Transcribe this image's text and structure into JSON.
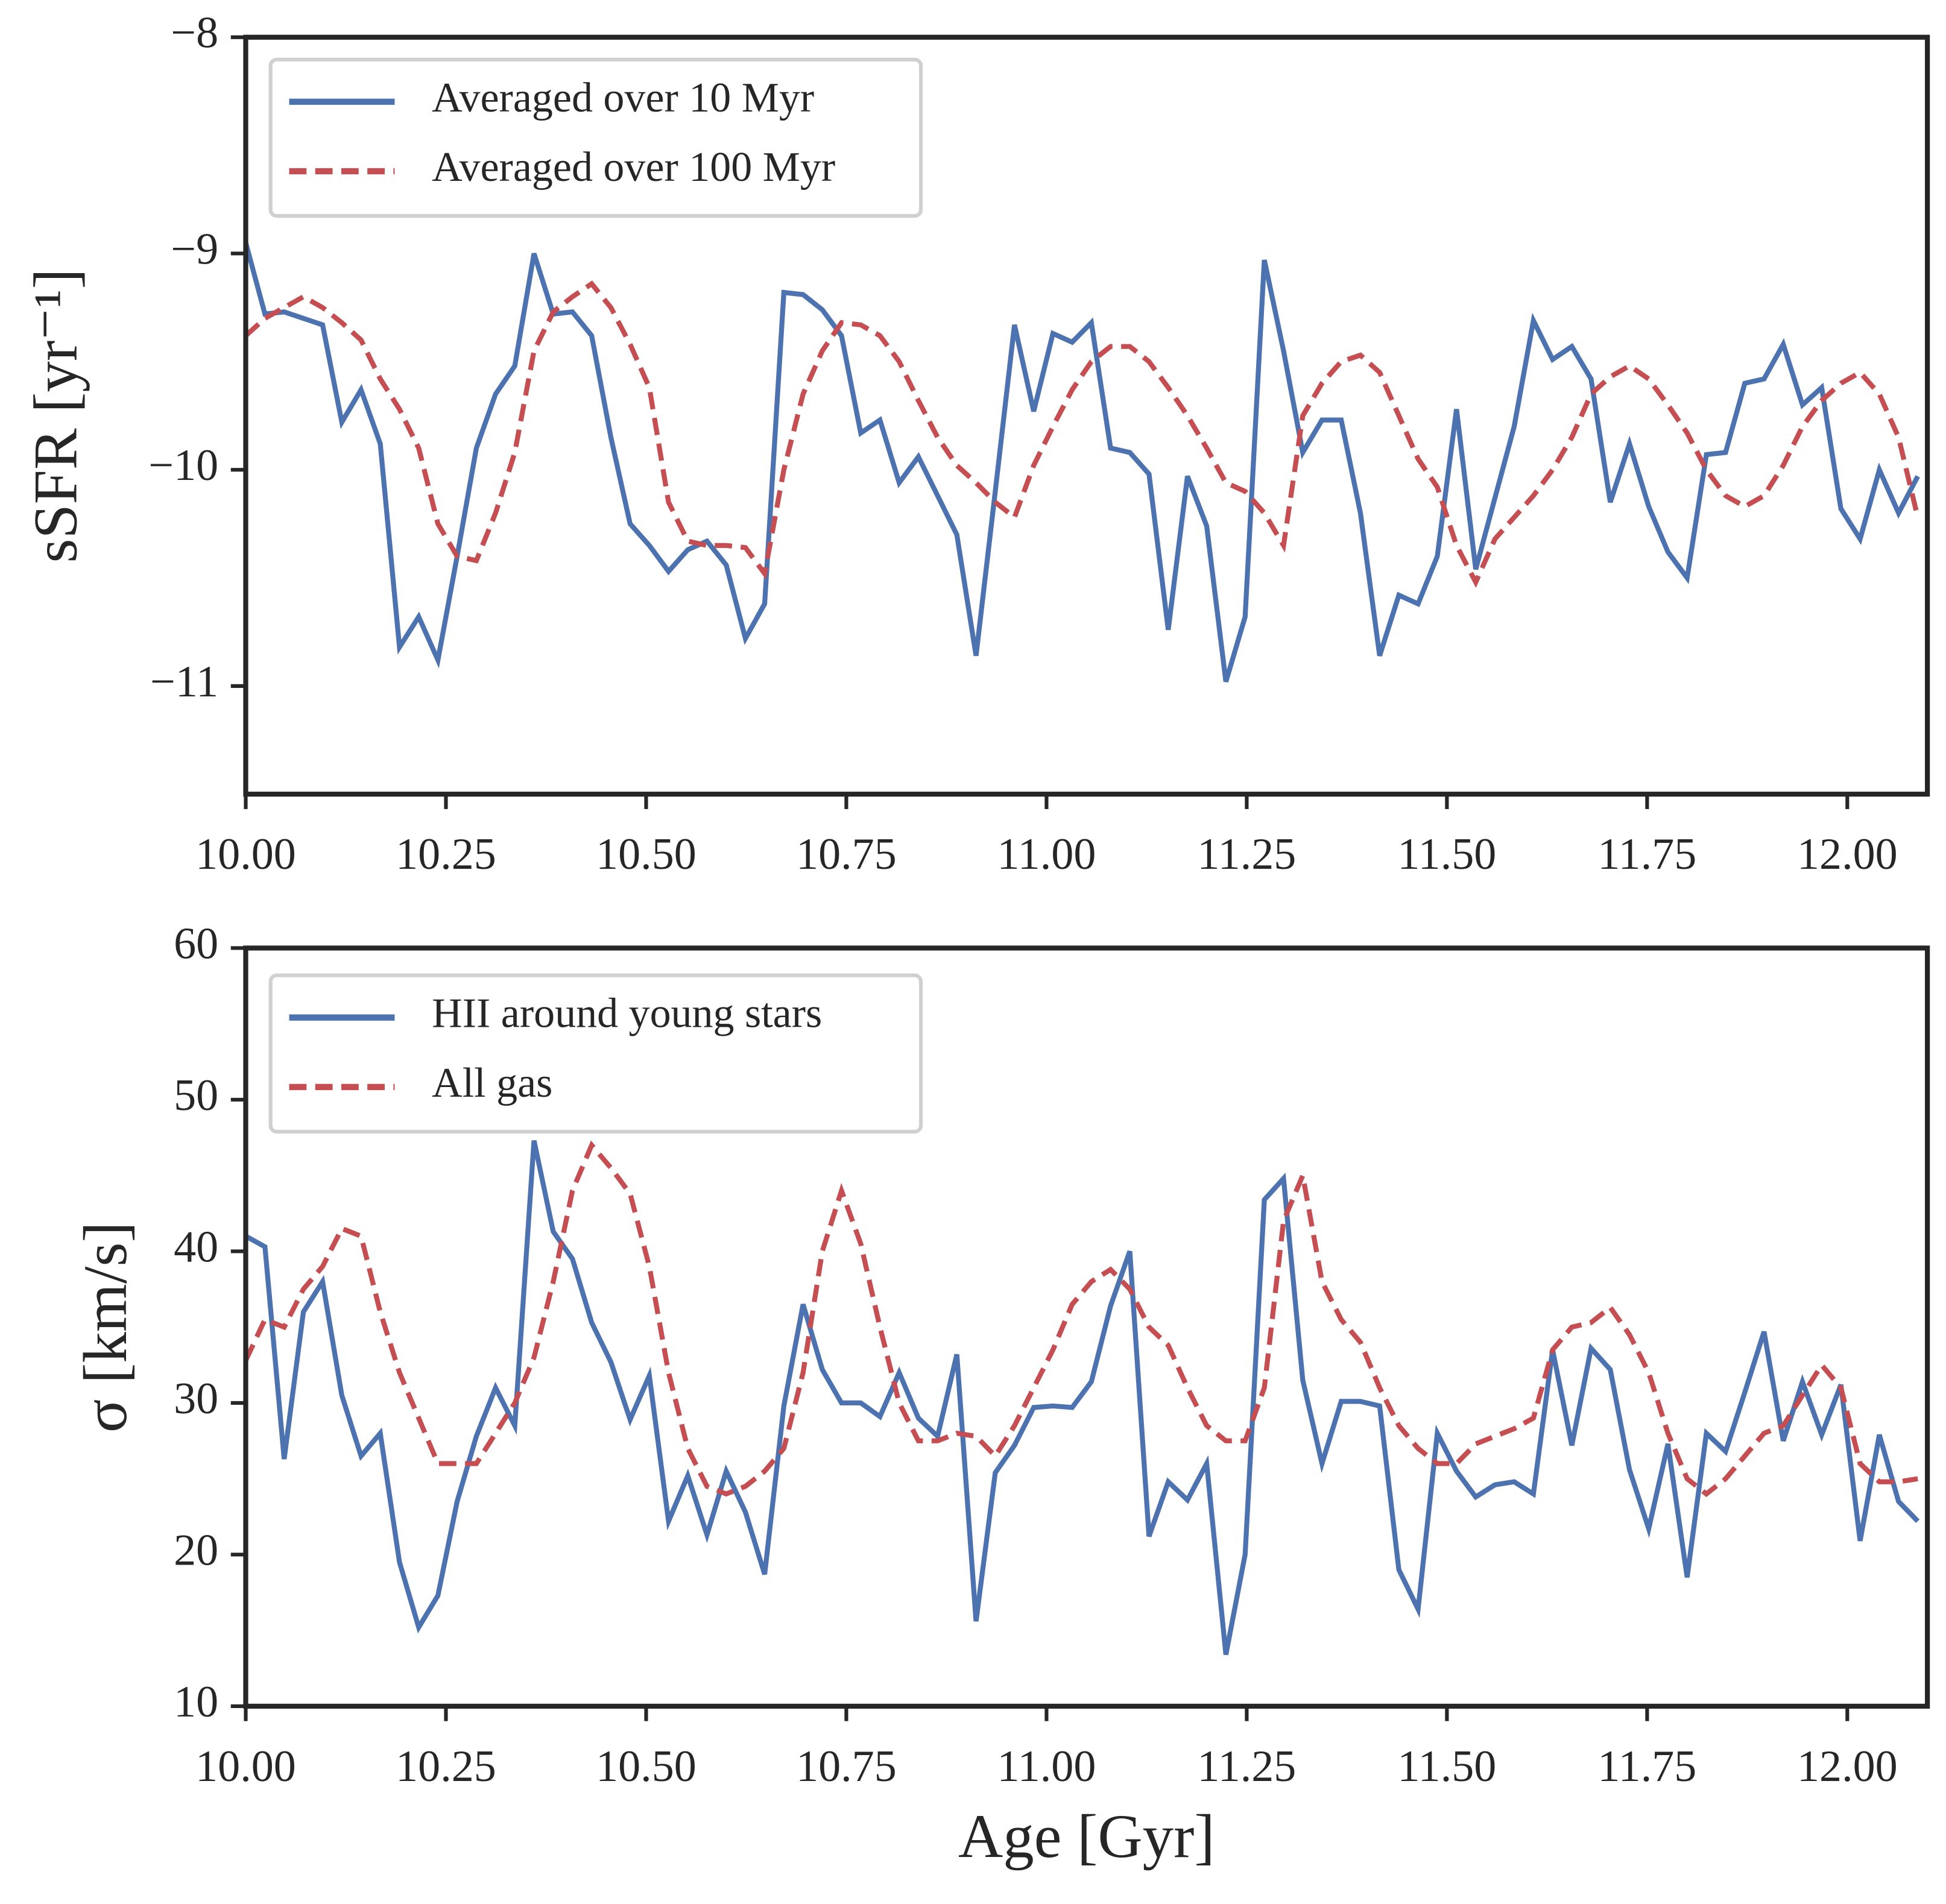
{
  "chart_data": [
    {
      "type": "line",
      "ylabel": "sSFR [yr⁻¹]",
      "legend": "upper left",
      "x": [
        10.0,
        10.024,
        10.048,
        10.072,
        10.096,
        10.12,
        10.144,
        10.168,
        10.192,
        10.216,
        10.24,
        10.264,
        10.288,
        10.312,
        10.336,
        10.36,
        10.384,
        10.408,
        10.432,
        10.456,
        10.48,
        10.504,
        10.528,
        10.552,
        10.576,
        10.6,
        10.624,
        10.648,
        10.672,
        10.696,
        10.72,
        10.744,
        10.768,
        10.792,
        10.816,
        10.84,
        10.864,
        10.888,
        10.912,
        10.936,
        10.96,
        10.984,
        11.008,
        11.032,
        11.056,
        11.08,
        11.104,
        11.128,
        11.152,
        11.176,
        11.2,
        11.224,
        11.248,
        11.272,
        11.296,
        11.32,
        11.344,
        11.368,
        11.392,
        11.416,
        11.44,
        11.464,
        11.488,
        11.512,
        11.536,
        11.56,
        11.584,
        11.608,
        11.632,
        11.656,
        11.68,
        11.704,
        11.728,
        11.752,
        11.776,
        11.8,
        11.824,
        11.848,
        11.872,
        11.896,
        11.92,
        11.944,
        11.968,
        11.992,
        12.016,
        12.04,
        12.064,
        12.088
      ],
      "xlim": [
        10,
        12.1
      ],
      "xticks": [
        {
          "value": 10,
          "label": "10.00"
        },
        {
          "value": 10.25,
          "label": "10.25"
        },
        {
          "value": 10.5,
          "label": "10.50"
        },
        {
          "value": 10.75,
          "label": "10.75"
        },
        {
          "value": 11,
          "label": "11.00"
        },
        {
          "value": 11.25,
          "label": "11.25"
        },
        {
          "value": 11.5,
          "label": "11.50"
        },
        {
          "value": 11.75,
          "label": "11.75"
        },
        {
          "value": 12,
          "label": "12.00"
        }
      ],
      "ylim": [
        -11.5,
        -8
      ],
      "yticks": [
        {
          "value": -11,
          "label": "−11"
        },
        {
          "value": -10,
          "label": "−10"
        },
        {
          "value": -9,
          "label": "−9"
        },
        {
          "value": -8,
          "label": "−8"
        }
      ],
      "series": [
        {
          "name": "Averaged over 10 Myr",
          "color": "#4c72b0",
          "style": "solid",
          "values": [
            -8.95,
            -9.28,
            -9.27,
            -9.3,
            -9.33,
            -9.78,
            -9.63,
            -9.88,
            -10.82,
            -10.68,
            -10.88,
            -10.4,
            -9.9,
            -9.65,
            -9.52,
            -9.0,
            -9.28,
            -9.27,
            -9.38,
            -9.85,
            -10.25,
            -10.35,
            -10.47,
            -10.37,
            -10.33,
            -10.44,
            -10.78,
            -10.62,
            -9.18,
            -9.19,
            -9.26,
            -9.38,
            -9.83,
            -9.77,
            -10.06,
            -9.94,
            -10.12,
            -10.3,
            -10.86,
            -10.1,
            -9.33,
            -9.73,
            -9.37,
            -9.41,
            -9.32,
            -9.9,
            -9.92,
            -10.02,
            -10.74,
            -10.03,
            -10.26,
            -10.98,
            -10.68,
            -9.03,
            -9.45,
            -9.92,
            -9.77,
            -9.77,
            -10.2,
            -10.86,
            -10.58,
            -10.62,
            -10.4,
            -9.72,
            -10.46,
            -10.13,
            -9.8,
            -9.31,
            -9.49,
            -9.43,
            -9.58,
            -10.15,
            -9.88,
            -10.17,
            -10.38,
            -10.5,
            -9.93,
            -9.92,
            -9.6,
            -9.58,
            -9.42,
            -9.7,
            -9.62,
            -10.18,
            -10.32,
            -10.0,
            -10.2,
            -10.03
          ]
        },
        {
          "name": "Averaged over 100 Myr",
          "color": "#c44e52",
          "style": "dashed",
          "values": [
            -9.38,
            -9.3,
            -9.25,
            -9.2,
            -9.25,
            -9.32,
            -9.4,
            -9.58,
            -9.72,
            -9.9,
            -10.25,
            -10.4,
            -10.42,
            -10.2,
            -9.92,
            -9.45,
            -9.27,
            -9.2,
            -9.14,
            -9.25,
            -9.42,
            -9.62,
            -10.15,
            -10.33,
            -10.35,
            -10.35,
            -10.36,
            -10.48,
            -10.0,
            -9.65,
            -9.45,
            -9.32,
            -9.33,
            -9.38,
            -9.5,
            -9.68,
            -9.85,
            -9.98,
            -10.06,
            -10.15,
            -10.22,
            -9.98,
            -9.8,
            -9.63,
            -9.5,
            -9.43,
            -9.43,
            -9.5,
            -9.62,
            -9.75,
            -9.9,
            -10.06,
            -10.1,
            -10.2,
            -10.35,
            -9.75,
            -9.6,
            -9.5,
            -9.47,
            -9.55,
            -9.75,
            -9.95,
            -10.08,
            -10.35,
            -10.52,
            -10.32,
            -10.22,
            -10.12,
            -10.0,
            -9.85,
            -9.65,
            -9.57,
            -9.52,
            -9.58,
            -9.7,
            -9.83,
            -10.0,
            -10.12,
            -10.17,
            -10.12,
            -9.98,
            -9.8,
            -9.68,
            -9.6,
            -9.55,
            -9.65,
            -9.85,
            -10.22
          ]
        }
      ]
    },
    {
      "type": "line",
      "ylabel": "σ [km/s]",
      "xlabel": "Age [Gyr]",
      "legend": "upper left",
      "x": [
        10.0,
        10.024,
        10.048,
        10.072,
        10.096,
        10.12,
        10.144,
        10.168,
        10.192,
        10.216,
        10.24,
        10.264,
        10.288,
        10.312,
        10.336,
        10.36,
        10.384,
        10.408,
        10.432,
        10.456,
        10.48,
        10.504,
        10.528,
        10.552,
        10.576,
        10.6,
        10.624,
        10.648,
        10.672,
        10.696,
        10.72,
        10.744,
        10.768,
        10.792,
        10.816,
        10.84,
        10.864,
        10.888,
        10.912,
        10.936,
        10.96,
        10.984,
        11.008,
        11.032,
        11.056,
        11.08,
        11.104,
        11.128,
        11.152,
        11.176,
        11.2,
        11.224,
        11.248,
        11.272,
        11.296,
        11.32,
        11.344,
        11.368,
        11.392,
        11.416,
        11.44,
        11.464,
        11.488,
        11.512,
        11.536,
        11.56,
        11.584,
        11.608,
        11.632,
        11.656,
        11.68,
        11.704,
        11.728,
        11.752,
        11.776,
        11.8,
        11.824,
        11.848,
        11.872,
        11.896,
        11.92,
        11.944,
        11.968,
        11.992,
        12.016,
        12.04,
        12.064,
        12.088
      ],
      "xlim": [
        10,
        12.1
      ],
      "xticks": [
        {
          "value": 10,
          "label": "10.00"
        },
        {
          "value": 10.25,
          "label": "10.25"
        },
        {
          "value": 10.5,
          "label": "10.50"
        },
        {
          "value": 10.75,
          "label": "10.75"
        },
        {
          "value": 11,
          "label": "11.00"
        },
        {
          "value": 11.25,
          "label": "11.25"
        },
        {
          "value": 11.5,
          "label": "11.50"
        },
        {
          "value": 11.75,
          "label": "11.75"
        },
        {
          "value": 12,
          "label": "12.00"
        }
      ],
      "ylim": [
        10,
        60
      ],
      "yticks": [
        10,
        20,
        30,
        40,
        50,
        60
      ],
      "series": [
        {
          "name": "HII around young stars",
          "color": "#4c72b0",
          "style": "solid",
          "values": [
            41,
            40.3,
            26.3,
            36,
            38,
            30.5,
            26.5,
            28,
            19.5,
            15.2,
            17.3,
            23.5,
            27.8,
            31,
            28.5,
            47.3,
            41.3,
            39.5,
            35.3,
            32.7,
            28.9,
            31.8,
            22.2,
            25.2,
            21.3,
            25.5,
            22.8,
            18.7,
            29.8,
            36.5,
            32.2,
            30,
            30,
            29.1,
            32,
            29,
            27.8,
            33.2,
            15.6,
            25.4,
            27.2,
            29.7,
            29.8,
            29.7,
            31.4,
            36.4,
            40,
            21.2,
            24.8,
            23.6,
            26,
            13.4,
            20,
            43.4,
            44.8,
            31.5,
            26,
            30.1,
            30.1,
            29.8,
            19,
            16.4,
            28,
            25.5,
            23.8,
            24.6,
            24.8,
            24,
            33.5,
            27.2,
            33.6,
            32.2,
            25.6,
            21.7,
            27.3,
            18.5,
            28,
            26.8,
            30.7,
            34.7,
            27.5,
            31.4,
            27.9,
            31.2,
            20.9,
            27.9,
            23.5,
            22.2
          ]
        },
        {
          "name": "All gas",
          "color": "#c44e52",
          "style": "dashed",
          "values": [
            32.8,
            35.5,
            35,
            37.5,
            39,
            41.5,
            41,
            36,
            32,
            29,
            26,
            26,
            26,
            28,
            30,
            33,
            38,
            44,
            47,
            45.5,
            43.8,
            39,
            32,
            27,
            24.5,
            24,
            24.5,
            25.5,
            27,
            32,
            40,
            44,
            40.5,
            35,
            30,
            27.5,
            27.5,
            28,
            27.8,
            26.5,
            28.5,
            31,
            33.5,
            36.5,
            38,
            38.8,
            37.5,
            35,
            33.8,
            31,
            28.5,
            27.5,
            27.5,
            31,
            42,
            45,
            38,
            35.5,
            34,
            31,
            28.5,
            27,
            26,
            26,
            27.3,
            27.8,
            28.3,
            29,
            33.5,
            35,
            35.3,
            36.3,
            34.5,
            32,
            28,
            25,
            24,
            25,
            26.5,
            28,
            28.5,
            30.5,
            32.5,
            31,
            26,
            24.8,
            24.8,
            25
          ]
        }
      ]
    }
  ]
}
